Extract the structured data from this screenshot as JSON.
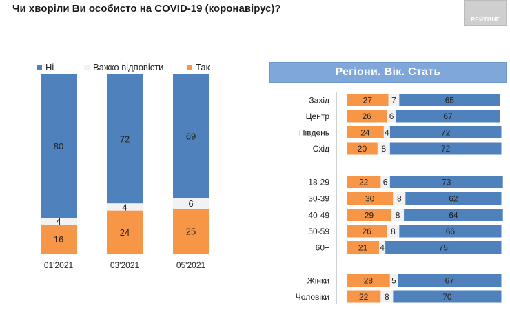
{
  "title": "Чи хворіли Ви особисто на COVID-19 (коронавірус)?",
  "logo_text": "РЕЙТИНГ",
  "colors": {
    "no": "#4f81bd",
    "hard": "#f2f2f2",
    "yes": "#f79646",
    "header_bg": "#7fa7d9"
  },
  "legend": {
    "no": "Ні",
    "hard": "Важко відповісти",
    "yes": "Так"
  },
  "right_header": "Регіони. Вік. Стать",
  "chart_data": [
    {
      "type": "bar",
      "stacked": true,
      "title": "Чи хворіли Ви особисто на COVID-19 (коронавірус)?",
      "categories": [
        "01'2021",
        "03'2021",
        "05'2021"
      ],
      "series": [
        {
          "name": "Так",
          "values": [
            16,
            24,
            25
          ]
        },
        {
          "name": "Важко відповісти",
          "values": [
            4,
            4,
            6
          ]
        },
        {
          "name": "Ні",
          "values": [
            80,
            72,
            69
          ]
        }
      ],
      "ylim": [
        0,
        100
      ],
      "legend": "top"
    },
    {
      "type": "bar",
      "orientation": "horizontal",
      "stacked": true,
      "title": "Регіони. Вік. Стать",
      "categories": [
        "Захід",
        "Центр",
        "Південь",
        "Схід",
        "18-29",
        "30-39",
        "40-49",
        "50-59",
        "60+",
        "Жінки",
        "Чоловіки"
      ],
      "series": [
        {
          "name": "Так",
          "values": [
            27,
            26,
            24,
            20,
            22,
            30,
            29,
            26,
            21,
            28,
            22
          ]
        },
        {
          "name": "Важко відповісти",
          "values": [
            7,
            6,
            4,
            8,
            6,
            8,
            8,
            8,
            4,
            5,
            8
          ]
        },
        {
          "name": "Ні",
          "values": [
            65,
            67,
            72,
            72,
            73,
            62,
            64,
            66,
            75,
            67,
            70
          ]
        }
      ],
      "xlim": [
        0,
        100
      ]
    }
  ]
}
